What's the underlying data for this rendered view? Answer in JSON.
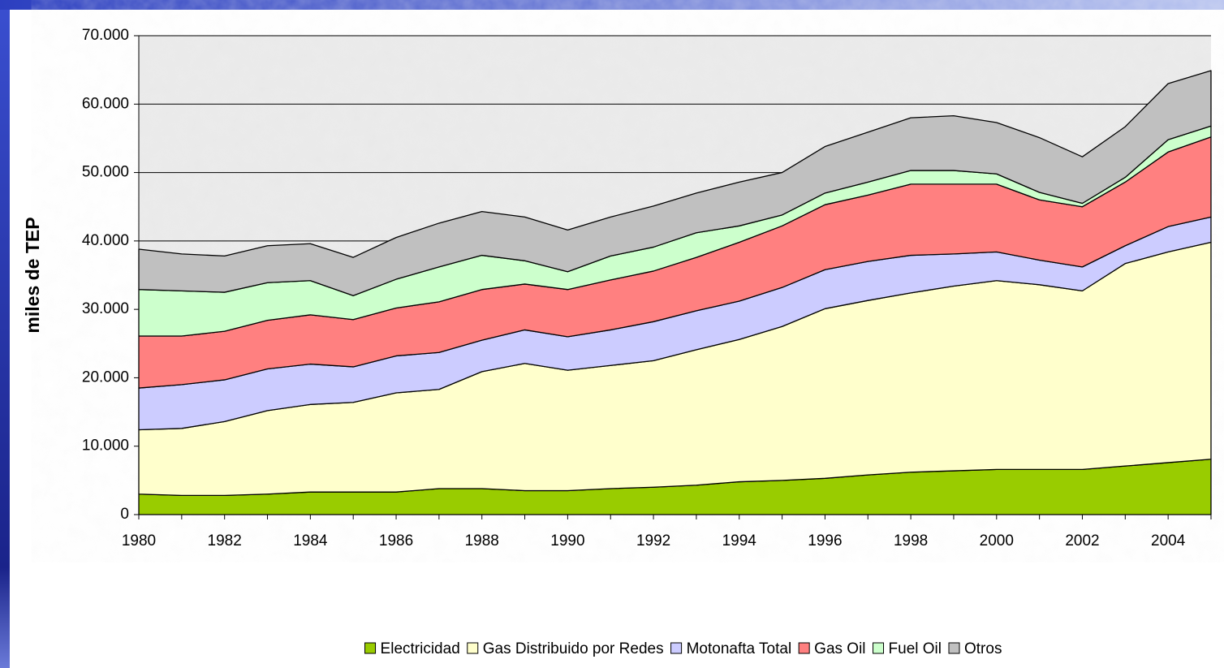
{
  "chart_data": {
    "type": "stacked_area",
    "y_label": "miles de TEP",
    "x": [
      1980,
      1981,
      1982,
      1983,
      1984,
      1985,
      1986,
      1987,
      1988,
      1989,
      1990,
      1991,
      1992,
      1993,
      1994,
      1995,
      1996,
      1997,
      1998,
      1999,
      2000,
      2001,
      2002,
      2003,
      2004,
      2005
    ],
    "xlim": [
      1980,
      2005
    ],
    "xticks": [
      1980,
      1982,
      1984,
      1986,
      1988,
      1990,
      1992,
      1994,
      1996,
      1998,
      2000,
      2002,
      2004
    ],
    "ylim": [
      0,
      70000
    ],
    "yticks": [
      0,
      {
        "value": 10000,
        "label": "10.000"
      },
      {
        "value": 20000,
        "label": "20.000"
      },
      {
        "value": 30000,
        "label": "30.000"
      },
      {
        "value": 40000,
        "label": "40.000"
      },
      {
        "value": 50000,
        "label": "50.000"
      },
      {
        "value": 60000,
        "label": "60.000"
      },
      {
        "value": 70000,
        "label": "70.000"
      }
    ],
    "grid": true,
    "legend": "bottom",
    "series": [
      {
        "name": "Electricidad",
        "color": "#99cc00",
        "values": [
          3000,
          2800,
          2800,
          3000,
          3300,
          3300,
          3300,
          3800,
          3800,
          3500,
          3500,
          3800,
          4000,
          4300,
          4800,
          5000,
          5300,
          5800,
          6200,
          6400,
          6600,
          6600,
          6600,
          7100,
          7600,
          8100
        ]
      },
      {
        "name": "Gas Distribuido por Redes",
        "color": "#ffffcc",
        "values": [
          9400,
          9800,
          10800,
          12200,
          12800,
          13100,
          14500,
          14500,
          17100,
          18600,
          17600,
          18000,
          18500,
          19800,
          20800,
          22500,
          24800,
          25500,
          26200,
          27000,
          27600,
          27000,
          26100,
          29600,
          30800,
          31700
        ]
      },
      {
        "name": "Motonafta Total",
        "color": "#ccccff",
        "values": [
          6100,
          6400,
          6100,
          6100,
          5900,
          5200,
          5400,
          5400,
          4600,
          4900,
          4900,
          5200,
          5700,
          5700,
          5600,
          5700,
          5700,
          5700,
          5500,
          4700,
          4200,
          3600,
          3500,
          2600,
          3700,
          3700
        ]
      },
      {
        "name": "Gas Oil",
        "color": "#ff8080",
        "values": [
          7600,
          7100,
          7100,
          7100,
          7200,
          6900,
          7000,
          7400,
          7400,
          6700,
          6900,
          7300,
          7400,
          7800,
          8600,
          9000,
          9500,
          9700,
          10400,
          10200,
          9900,
          8800,
          8800,
          9300,
          10900,
          11700
        ]
      },
      {
        "name": "Fuel Oil",
        "color": "#ccffcc",
        "values": [
          6800,
          6600,
          5700,
          5500,
          5000,
          3500,
          4200,
          5100,
          5000,
          3400,
          2600,
          3500,
          3500,
          3600,
          2400,
          1600,
          1700,
          1900,
          2000,
          2000,
          1500,
          1100,
          500,
          700,
          1800,
          1600
        ]
      },
      {
        "name": "Otros",
        "color": "#c0c0c0",
        "values": [
          5900,
          5400,
          5300,
          5400,
          5400,
          5600,
          6100,
          6400,
          6400,
          6400,
          6100,
          5700,
          6000,
          5800,
          6400,
          6200,
          6800,
          7300,
          7700,
          8000,
          7500,
          8000,
          6800,
          7400,
          8200,
          8100
        ]
      }
    ]
  }
}
